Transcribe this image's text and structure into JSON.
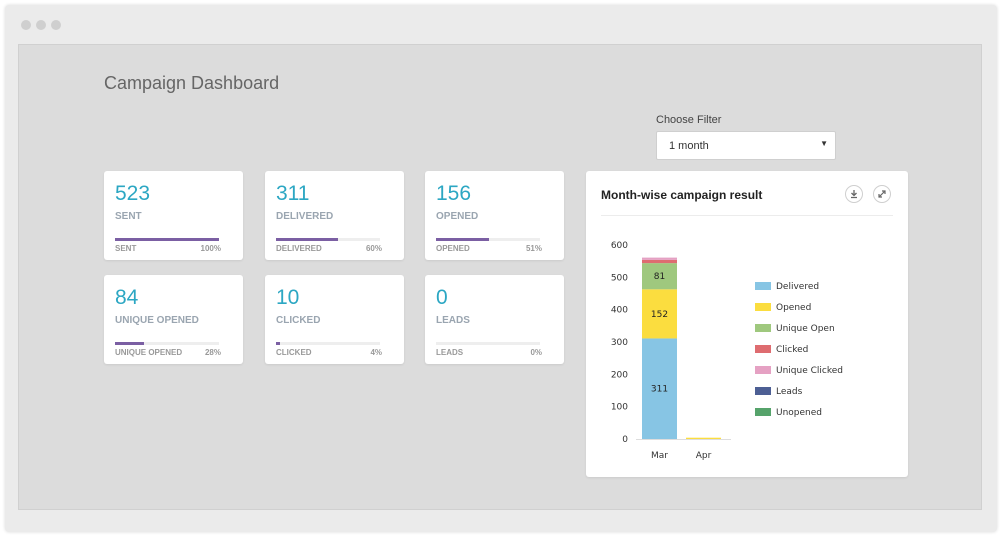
{
  "page": {
    "title": "Campaign Dashboard"
  },
  "filter": {
    "label": "Choose Filter",
    "selected": "1 month"
  },
  "cards": [
    {
      "value": "523",
      "label": "SENT",
      "foot_label": "SENT",
      "pct_text": "100%",
      "pct": 100
    },
    {
      "value": "311",
      "label": "DELIVERED",
      "foot_label": "DELIVERED",
      "pct_text": "60%",
      "pct": 60
    },
    {
      "value": "156",
      "label": "OPENED",
      "foot_label": "OPENED",
      "pct_text": "51%",
      "pct": 51
    },
    {
      "value": "84",
      "label": "UNIQUE OPENED",
      "foot_label": "UNIQUE OPENED",
      "pct_text": "28%",
      "pct": 28
    },
    {
      "value": "10",
      "label": "CLICKED",
      "foot_label": "CLICKED",
      "pct_text": "4%",
      "pct": 4
    },
    {
      "value": "0",
      "label": "LEADS",
      "foot_label": "LEADS",
      "pct_text": "0%",
      "pct": 0
    }
  ],
  "chart_panel": {
    "title": "Month-wise campaign result"
  },
  "icons": {
    "download": "download-icon",
    "expand": "expand-icon"
  },
  "colors": {
    "accent": "#2ca7c3",
    "progress": "#7b5fa3"
  },
  "chart_data": {
    "type": "bar",
    "stacked": true,
    "title": "Month-wise campaign result",
    "categories": [
      "Mar",
      "Apr"
    ],
    "ylim": [
      0,
      600
    ],
    "yticks": [
      0,
      100,
      200,
      300,
      400,
      500,
      600
    ],
    "legend_position": "right",
    "series": [
      {
        "name": "Delivered",
        "color": "#87c5e4",
        "values": [
          311,
          0
        ],
        "labels": [
          "311",
          ""
        ]
      },
      {
        "name": "Opened",
        "color": "#fbdd3f",
        "values": [
          152,
          4
        ],
        "labels": [
          "152",
          ""
        ]
      },
      {
        "name": "Unique Open",
        "color": "#9fc87e",
        "values": [
          81,
          0
        ],
        "labels": [
          "81",
          ""
        ]
      },
      {
        "name": "Clicked",
        "color": "#de6c70",
        "values": [
          10,
          0
        ],
        "labels": [
          "",
          ""
        ]
      },
      {
        "name": "Unique Clicked",
        "color": "#e5a1c3",
        "values": [
          7,
          0
        ],
        "labels": [
          "",
          ""
        ]
      },
      {
        "name": "Leads",
        "color": "#4d5f94",
        "values": [
          0,
          0
        ],
        "labels": [
          "",
          ""
        ]
      },
      {
        "name": "Unopened",
        "color": "#56a36b",
        "values": [
          0,
          0
        ],
        "labels": [
          "",
          ""
        ]
      }
    ]
  }
}
